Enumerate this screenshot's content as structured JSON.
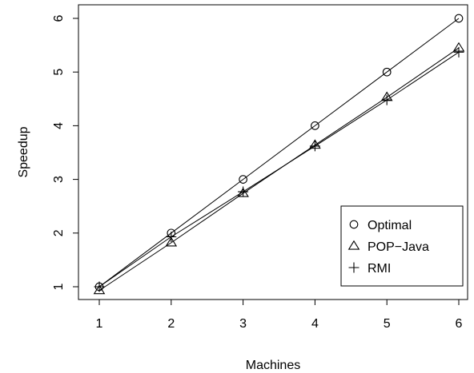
{
  "chart_data": {
    "type": "line",
    "title": "",
    "xlabel": "Machines",
    "ylabel": "Speedup",
    "xlim": [
      1,
      6
    ],
    "ylim": [
      1,
      6
    ],
    "x_ticks": [
      "1",
      "2",
      "3",
      "4",
      "5",
      "6"
    ],
    "y_ticks": [
      "1",
      "2",
      "3",
      "4",
      "5",
      "6"
    ],
    "grid": false,
    "legend_position": "bottom-right",
    "x": [
      1,
      2,
      3,
      4,
      5,
      6
    ],
    "series": [
      {
        "name": "Optimal",
        "marker": "circle",
        "values": [
          1,
          2,
          3,
          4,
          5,
          6
        ]
      },
      {
        "name": "POP−Java",
        "marker": "triangle",
        "values": [
          0.93,
          1.82,
          2.74,
          3.64,
          4.53,
          5.45
        ]
      },
      {
        "name": "RMI",
        "marker": "plus",
        "values": [
          1.0,
          1.93,
          2.77,
          3.62,
          4.48,
          5.37
        ]
      }
    ],
    "colors": {
      "line": "#000000",
      "marker": "#000000"
    }
  }
}
